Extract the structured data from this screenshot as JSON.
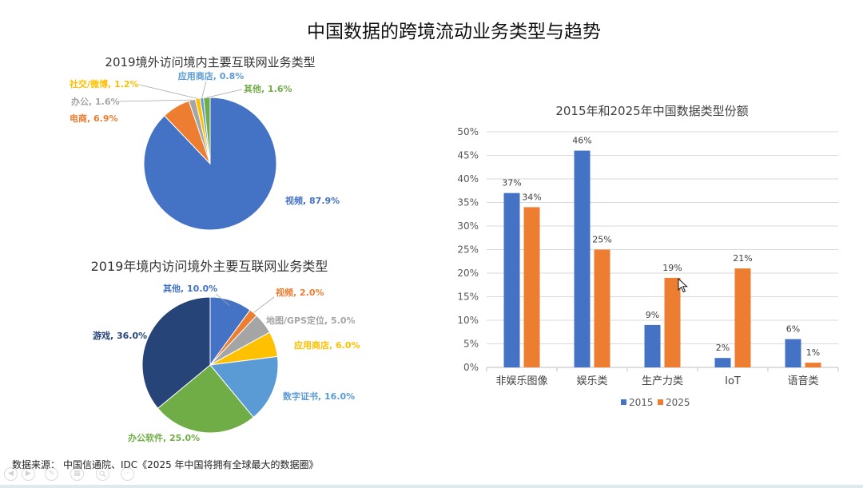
{
  "slide": {
    "title": "中国数据的跨境流动业务类型与趋势",
    "source_label": "数据来源：",
    "source_text": "中国信通院、IDC《2025 年中国将拥有全球最大的数据圈》"
  },
  "slideshow_controls": {
    "icons": [
      "previous-slide-icon",
      "next-slide-icon",
      "pen-icon",
      "see-all-slides-icon",
      "zoom-icon",
      "more-options-icon"
    ]
  },
  "chart_data": [
    {
      "type": "pie",
      "title": "2019境外访问境内主要互联网业务类型",
      "data_labels": "outside",
      "slices": [
        {
          "name": "视频",
          "value": 87.9,
          "color": "#4472C4"
        },
        {
          "name": "电商",
          "value": 6.9,
          "color": "#ED7D31"
        },
        {
          "name": "办公",
          "value": 1.6,
          "color": "#A5A5A5"
        },
        {
          "name": "社交/微博",
          "value": 1.2,
          "color": "#FFC000"
        },
        {
          "name": "应用商店",
          "value": 0.8,
          "color": "#5B9BD5"
        },
        {
          "name": "其他",
          "value": 1.6,
          "color": "#70AD47"
        }
      ]
    },
    {
      "type": "pie",
      "title": "2019年境内访问境外主要互联网业务类型",
      "data_labels": "outside",
      "slices": [
        {
          "name": "其他",
          "value": 10.0,
          "color": "#4472C4"
        },
        {
          "name": "视频",
          "value": 2.0,
          "color": "#ED7D31"
        },
        {
          "name": "地图/GPS定位",
          "value": 5.0,
          "color": "#A5A5A5"
        },
        {
          "name": "应用商店",
          "value": 6.0,
          "color": "#FFC000"
        },
        {
          "name": "数字证书",
          "value": 16.0,
          "color": "#5B9BD5"
        },
        {
          "name": "办公软件",
          "value": 25.0,
          "color": "#70AD47"
        },
        {
          "name": "游戏",
          "value": 36.0,
          "color": "#264478"
        }
      ]
    },
    {
      "type": "bar",
      "title": "2015年和2025年中国数据类型份额",
      "categories": [
        "非娱乐图像",
        "娱乐类",
        "生产力类",
        "IoT",
        "语音类"
      ],
      "series": [
        {
          "name": "2015",
          "values": [
            37,
            46,
            9,
            2,
            6
          ],
          "color": "#4472C4"
        },
        {
          "name": "2025",
          "values": [
            34,
            25,
            19,
            21,
            1
          ],
          "color": "#ED7D31"
        }
      ],
      "ylim": [
        0,
        50
      ],
      "yticks": [
        0,
        5,
        10,
        15,
        20,
        25,
        30,
        35,
        40,
        45,
        50
      ],
      "grid": true,
      "legend": "bottom",
      "data_labels": true
    }
  ]
}
